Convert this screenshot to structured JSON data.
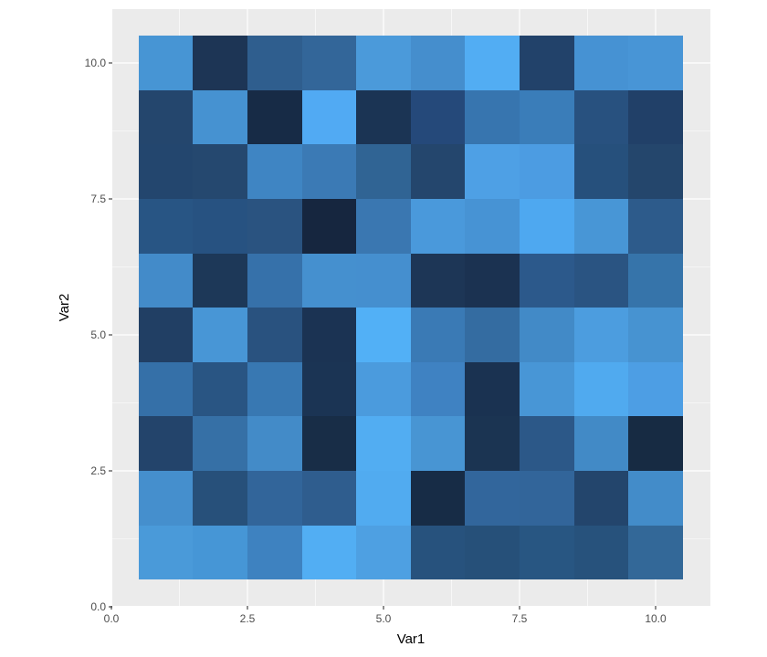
{
  "chart_data": {
    "type": "heatmap",
    "title": "",
    "xlabel": "Var1",
    "ylabel": "Var2",
    "xlim": [
      0,
      10.5
    ],
    "ylim": [
      0,
      10.5
    ],
    "x_ticks": [
      0,
      2.5,
      5,
      7.5,
      10
    ],
    "y_ticks": [
      0,
      2.5,
      5,
      7.5,
      10
    ],
    "x_tick_labels": [
      "0.0",
      "2.5",
      "5.0",
      "7.5",
      "10.0"
    ],
    "y_tick_labels": [
      "0.0",
      "2.5",
      "5.0",
      "7.5",
      "10.0"
    ],
    "grid": true,
    "legend": "none",
    "x": [
      1,
      2,
      3,
      4,
      5,
      6,
      7,
      8,
      9,
      10
    ],
    "y": [
      1,
      2,
      3,
      4,
      5,
      6,
      7,
      8,
      9,
      10
    ],
    "cell_colors": [
      [
        "#4a9ad9",
        "#4696d6",
        "#3e82c0",
        "#52aef3",
        "#4ea0e2",
        "#27527d",
        "#265079",
        "#285682",
        "#27527c",
        "#336898"
      ],
      [
        "#458fcd",
        "#27507a",
        "#32659a",
        "#2f5d8e",
        "#51abf0",
        "#172c46",
        "#32669c",
        "#32659a",
        "#23456c",
        "#438cc9"
      ],
      [
        "#23446b",
        "#3670a6",
        "#438bc8",
        "#182d47",
        "#52adf2",
        "#4895d3",
        "#1b3452",
        "#2c5888",
        "#428ac6",
        "#172b43"
      ],
      [
        "#3570a8",
        "#295583",
        "#3878b2",
        "#1b3454",
        "#4b9bdd",
        "#3f82c2",
        "#1a3251",
        "#4896d6",
        "#50aaef",
        "#4d9ee4"
      ],
      [
        "#213f64",
        "#4896d6",
        "#29527f",
        "#1b3353",
        "#52b0f6",
        "#3a7ab5",
        "#346ca1",
        "#428ac7",
        "#4c9ddf",
        "#4793d1"
      ],
      [
        "#438bc9",
        "#1d3858",
        "#3671aa",
        "#4590cf",
        "#458fcf",
        "#1d3656",
        "#1b3251",
        "#2c598b",
        "#2a5482",
        "#3674aa"
      ],
      [
        "#285584",
        "#275281",
        "#2a5380",
        "#16263f",
        "#3a77b1",
        "#4a99db",
        "#4793d4",
        "#4ea8f0",
        "#4896d6",
        "#2d5b8b"
      ],
      [
        "#23466e",
        "#25486f",
        "#3f85c3",
        "#3b7ab5",
        "#306494",
        "#24466d",
        "#4ea0e5",
        "#4c9ce2",
        "#26507c",
        "#24466c"
      ],
      [
        "#24466d",
        "#4692d1",
        "#172b46",
        "#51aaf3",
        "#1b3454",
        "#25497a",
        "#3775af",
        "#3a7db9",
        "#28517f",
        "#214068"
      ],
      [
        "#4795d4",
        "#1d3555",
        "#2f5e8e",
        "#336699",
        "#4b9ada",
        "#458ecd",
        "#52adf3",
        "#22426a",
        "#4692d3",
        "#4895d6"
      ]
    ]
  }
}
